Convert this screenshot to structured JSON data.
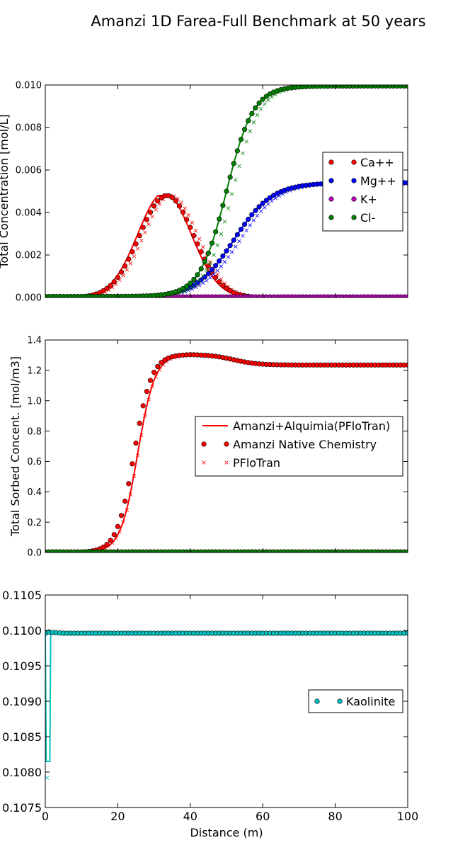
{
  "figure": {
    "title": "Amanzi 1D Farea-Full Benchmark at 50 years"
  },
  "chart_data": [
    {
      "type": "scatter",
      "ylabel": "Total Concentration [mol/L]",
      "xlabel": "",
      "xlim": [
        0,
        100
      ],
      "ylim": [
        0,
        0.01
      ],
      "yticks": [
        "0.000",
        "0.002",
        "0.004",
        "0.006",
        "0.008",
        "0.010"
      ],
      "xticks": [],
      "legend": {
        "placement": "center-right",
        "entries": [
          "Ca++",
          "Mg++",
          "K+",
          "Cl-"
        ]
      },
      "series": [
        {
          "name": "Ca++",
          "color": "#ff0000",
          "shape": "bell",
          "peak_x": 33.5,
          "peak_y": 0.0048,
          "width": 7.5,
          "cut_left": 10,
          "cut_right": 60
        },
        {
          "name": "Mg++",
          "color": "#0000ff",
          "shape": "sigmoid",
          "mid_x": 52,
          "k": 0.19,
          "y0": 0.0,
          "y1": 0.0054
        },
        {
          "name": "K+",
          "color": "#bf00bf",
          "shape": "flat",
          "y": 3e-05
        },
        {
          "name": "Cl-",
          "color": "#008000",
          "shape": "sigmoid",
          "mid_x": 50,
          "k": 0.27,
          "y0": 5e-05,
          "y1": 0.00995
        }
      ],
      "grid": false
    },
    {
      "type": "scatter",
      "ylabel": "Total Sorbed Concent. [mol/m3]",
      "xlabel": "",
      "xlim": [
        0,
        100
      ],
      "ylim": [
        0,
        1.4
      ],
      "yticks": [
        "0.0",
        "0.2",
        "0.4",
        "0.6",
        "0.8",
        "1.0",
        "1.2",
        "1.4"
      ],
      "xticks": [],
      "legend": {
        "placement": "center-right",
        "entries": [
          "Amanzi+Alquimia(PFloTran)",
          "Amanzi Native Chemistry",
          "PFloTran"
        ]
      },
      "series": [
        {
          "name": "Ca++",
          "color": "#ff0000",
          "shape": "sorbed",
          "mid_x": 24.5,
          "k": 0.42,
          "peak": 1.305,
          "plateau": 1.235
        },
        {
          "name": "Mg++",
          "color": "#0000ff",
          "shape": "flat",
          "y": 0.002
        },
        {
          "name": "K+",
          "color": "#bf00bf",
          "shape": "flat",
          "y": 0.002
        },
        {
          "name": "Cl-",
          "color": "#008000",
          "shape": "flat",
          "y": 0.004
        }
      ],
      "grid": false
    },
    {
      "type": "scatter",
      "ylabel": "",
      "xlabel": "Distance (m)",
      "xlim": [
        0,
        100
      ],
      "ylim": [
        0.1075,
        0.1105
      ],
      "yticks": [
        "0.1075",
        "0.1080",
        "0.1085",
        "0.1090",
        "0.1095",
        "0.1100",
        "0.1105"
      ],
      "xticks": [
        "0",
        "20",
        "40",
        "60",
        "80",
        "100"
      ],
      "legend": {
        "placement": "center-right",
        "entries": [
          "Kaolinite"
        ]
      },
      "series": [
        {
          "name": "Kaolinite",
          "color": "#00bfbf",
          "shape": "kaolinite",
          "value": 0.10996,
          "dip": 0.10815,
          "pflotran_dip": 0.10792
        }
      ],
      "grid": false
    }
  ]
}
